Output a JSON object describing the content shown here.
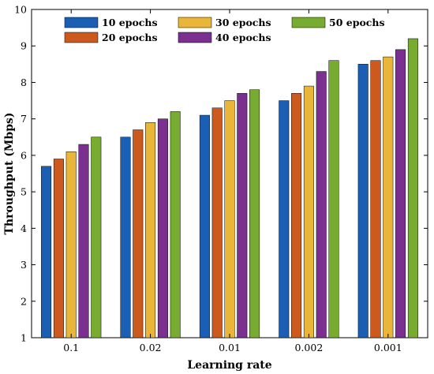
{
  "chart_data": {
    "type": "bar",
    "xlabel": "Learning rate",
    "ylabel": "Throughput (Mbps)",
    "categories": [
      "0.1",
      "0.02",
      "0.01",
      "0.002",
      "0.001"
    ],
    "ylim": [
      1,
      10
    ],
    "yticks": [
      1,
      2,
      3,
      4,
      5,
      6,
      7,
      8,
      9,
      10
    ],
    "grid": false,
    "legend_position": "top",
    "series": [
      {
        "name": "10 epochs",
        "color": "#1a5fb4",
        "values": [
          5.7,
          6.5,
          7.1,
          7.5,
          8.5
        ]
      },
      {
        "name": "20 epochs",
        "color": "#cc5a1e",
        "values": [
          5.9,
          6.7,
          7.3,
          7.7,
          8.6
        ]
      },
      {
        "name": "30 epochs",
        "color": "#eab63a",
        "values": [
          6.1,
          6.9,
          7.5,
          7.9,
          8.7
        ]
      },
      {
        "name": "40 epochs",
        "color": "#7b2f8e",
        "values": [
          6.3,
          7.0,
          7.7,
          8.3,
          8.9
        ]
      },
      {
        "name": "50 epochs",
        "color": "#77ac30",
        "values": [
          6.5,
          7.2,
          7.8,
          8.6,
          9.2
        ]
      }
    ]
  }
}
